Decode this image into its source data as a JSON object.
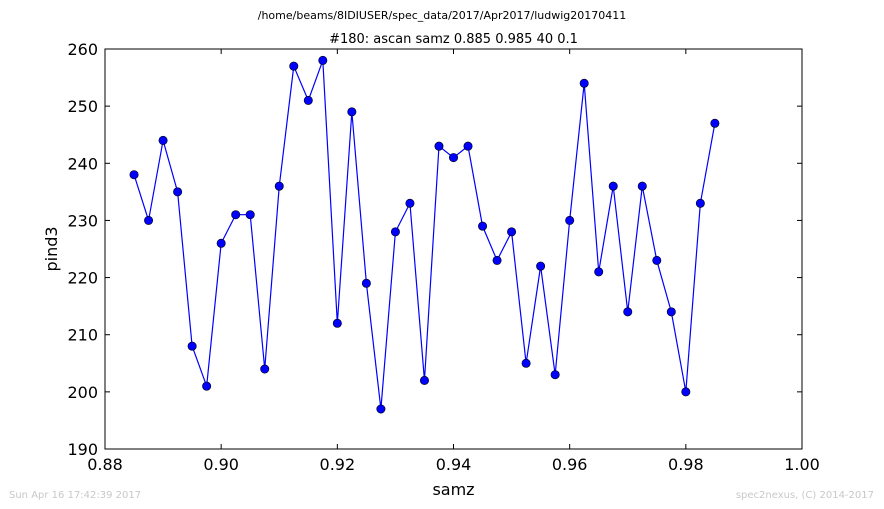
{
  "chart_data": {
    "type": "line",
    "suptitle": "/home/beams/8IDIUSER/spec_data/2017/Apr2017/ludwig20170411",
    "title": "#180: ascan  samz 0.885 0.985  40 0.1",
    "xlabel": "samz",
    "ylabel": "pind3",
    "xlim": [
      0.88,
      1.0
    ],
    "ylim": [
      190,
      260
    ],
    "xticks": [
      "0.88",
      "0.90",
      "0.92",
      "0.94",
      "0.96",
      "0.98",
      "1.00"
    ],
    "yticks": [
      "190",
      "200",
      "210",
      "220",
      "230",
      "240",
      "250",
      "260"
    ],
    "grid": false,
    "line_color": "#0000ff",
    "marker": "circle",
    "x": [
      0.885,
      0.8875,
      0.89,
      0.8925,
      0.895,
      0.8975,
      0.9,
      0.9025,
      0.905,
      0.9075,
      0.91,
      0.9125,
      0.915,
      0.9175,
      0.92,
      0.9225,
      0.925,
      0.9275,
      0.93,
      0.9325,
      0.935,
      0.9375,
      0.94,
      0.9425,
      0.945,
      0.9475,
      0.95,
      0.9525,
      0.955,
      0.9575,
      0.96,
      0.9625,
      0.965,
      0.9675,
      0.97,
      0.9725,
      0.975,
      0.9775,
      0.98,
      0.9825,
      0.985
    ],
    "y": [
      238,
      230,
      244,
      235,
      208,
      201,
      226,
      231,
      231,
      204,
      236,
      257,
      251,
      258,
      212,
      249,
      219,
      197,
      228,
      233,
      202,
      243,
      241,
      243,
      229,
      223,
      228,
      205,
      222,
      203,
      230,
      254,
      221,
      236,
      214,
      236,
      223,
      214,
      200,
      233,
      247
    ]
  },
  "footer": {
    "timestamp": "Sun Apr 16 17:42:39 2017",
    "credit": "spec2nexus, (C) 2014-2017"
  }
}
